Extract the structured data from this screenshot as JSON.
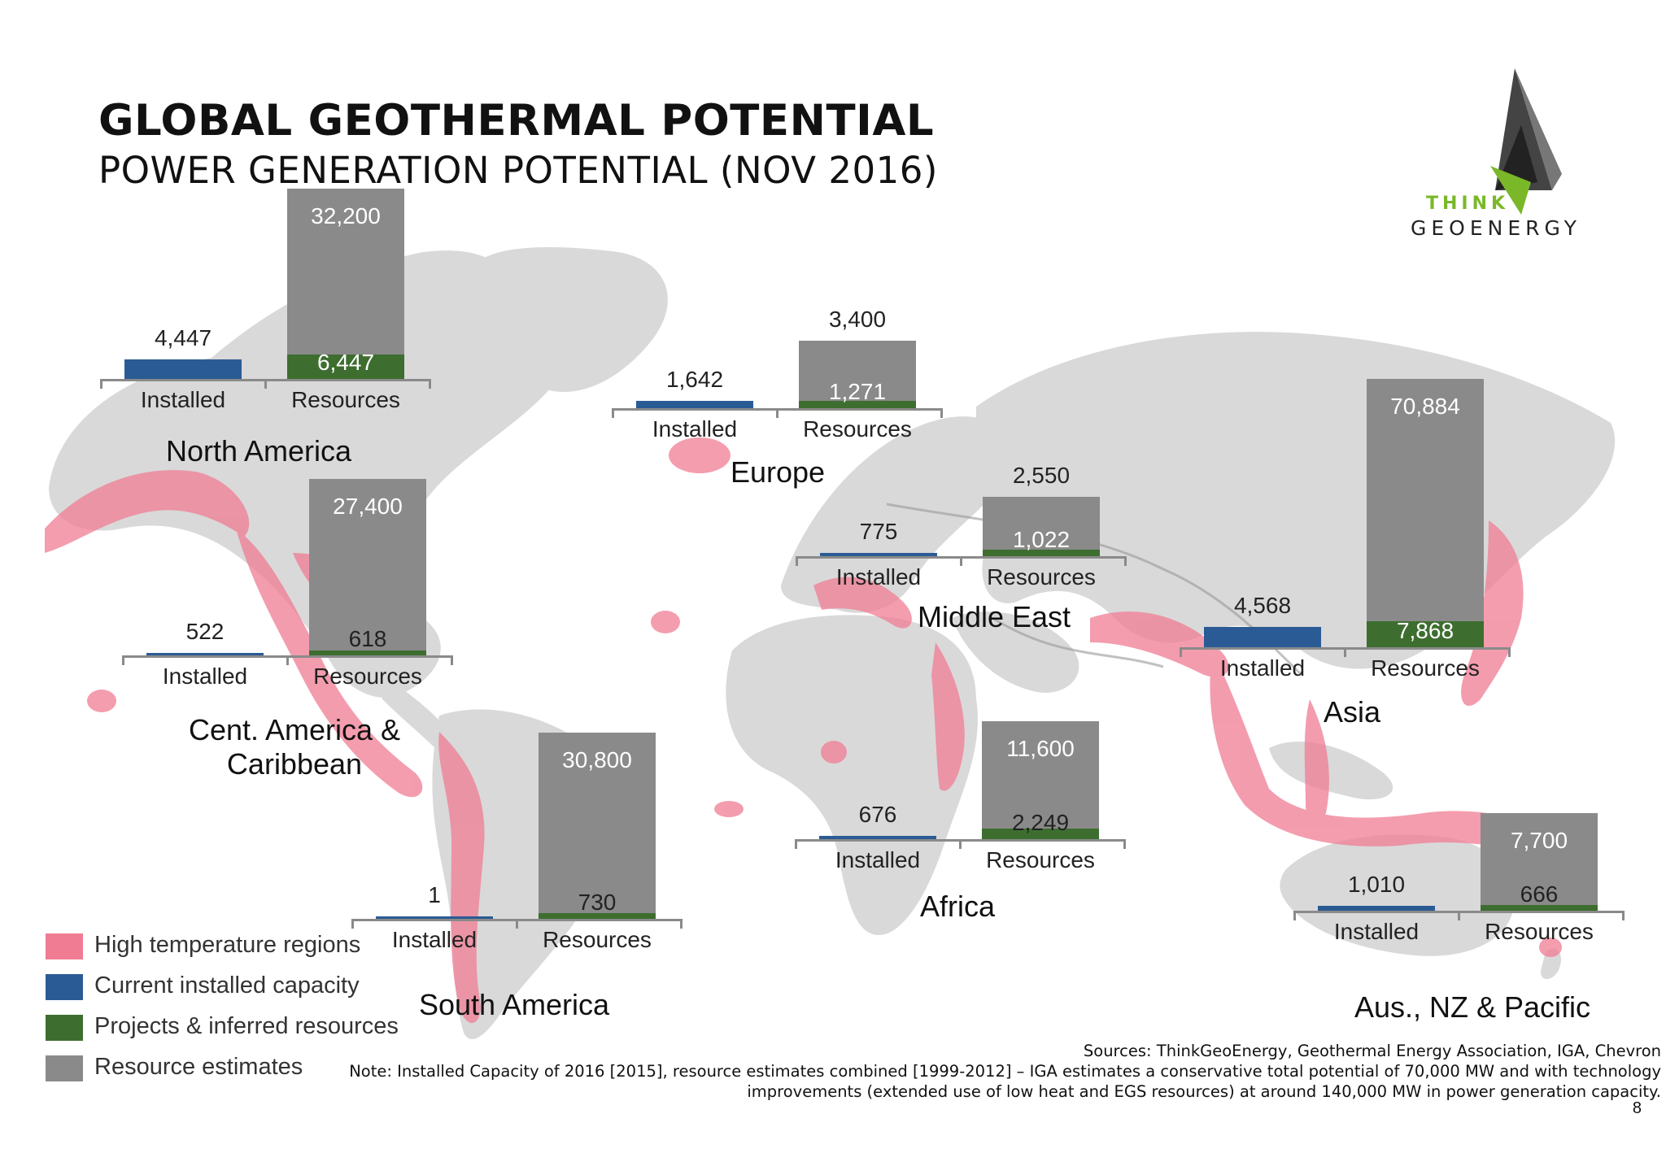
{
  "header": {
    "title": "GLOBAL GEOTHERMAL POTENTIAL",
    "subtitle": "POWER GENERATION POTENTIAL (NOV 2016)"
  },
  "logo": {
    "line1": "THINK",
    "line2": "GEOENERGY"
  },
  "colors": {
    "high_temp": "#f07c93",
    "installed": "#2b5b94",
    "projects": "#3d6e2f",
    "estimates": "#8a8a8a",
    "land": "#d9d9d9"
  },
  "chart_data": {
    "type": "bar",
    "categories": [
      "Installed",
      "Resources"
    ],
    "units": "MW",
    "regions": [
      {
        "name": "North America",
        "installed": 4447,
        "projects": 6447,
        "estimates": 32200
      },
      {
        "name": "Europe",
        "installed": 1642,
        "projects": 1271,
        "estimates": 3400
      },
      {
        "name": "Middle East",
        "installed": 775,
        "projects": 1022,
        "estimates": 2550
      },
      {
        "name": "Cent. America & Caribbean",
        "installed": 522,
        "projects": 618,
        "estimates": 27400
      },
      {
        "name": "Asia",
        "installed": 4568,
        "projects": 7868,
        "estimates": 70884
      },
      {
        "name": "South America",
        "installed": 1,
        "projects": 730,
        "estimates": 30800
      },
      {
        "name": "Africa",
        "installed": 676,
        "projects": 2249,
        "estimates": 11600
      },
      {
        "name": "Aus., NZ & Pacific",
        "installed": 1010,
        "projects": 666,
        "estimates": 7700
      }
    ],
    "labels": {
      "North America": {
        "installed": "4,447",
        "projects": "6,447",
        "estimates": "32,200"
      },
      "Europe": {
        "installed": "1,642",
        "projects": "1,271",
        "estimates": "3,400"
      },
      "Middle East": {
        "installed": "775",
        "projects": "1,022",
        "estimates": "2,550"
      },
      "Cent. America & Caribbean": {
        "installed": "522",
        "projects": "618",
        "estimates": "27,400"
      },
      "Asia": {
        "installed": "4,568",
        "projects": "7,868",
        "estimates": "70,884"
      },
      "South America": {
        "installed": "1",
        "projects": "730",
        "estimates": "30,800"
      },
      "Africa": {
        "installed": "676",
        "projects": "2,249",
        "estimates": "11,600"
      },
      "Aus., NZ & Pacific": {
        "installed": "1,010",
        "projects": "666",
        "estimates": "7,700"
      }
    },
    "region_titles": {
      "North America": "North America",
      "Europe": "Europe",
      "Middle East": "Middle East",
      "Cent. America & Caribbean": [
        "Cent. America &",
        "Caribbean"
      ],
      "Asia": "Asia",
      "South America": "South America",
      "Africa": "Africa",
      "Aus., NZ & Pacific": "Aus., NZ & Pacific"
    }
  },
  "legend": [
    {
      "label": "High temperature regions",
      "color": "#f07c93"
    },
    {
      "label": "Current installed capacity",
      "color": "#2b5b94"
    },
    {
      "label": "Projects & inferred resources",
      "color": "#3d6e2f"
    },
    {
      "label": "Resource estimates",
      "color": "#8a8a8a"
    }
  ],
  "footer": {
    "sources": "Sources: ThinkGeoEnergy, Geothermal Energy Association, IGA, Chevron",
    "note1": "Note: Installed Capacity of 2016 [2015], resource estimates combined [1999-2012] – IGA estimates a conservative total potential of 70,000 MW and with technology",
    "note2": "improvements (extended use of low heat and EGS resources) at around 140,000 MW in power generation capacity.",
    "page": "8"
  }
}
